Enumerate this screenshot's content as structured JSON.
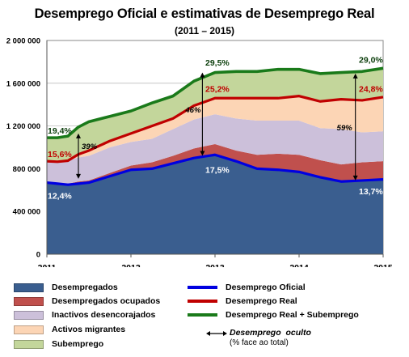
{
  "title": "Desemprego Oficial e estimativas de Desemprego Real",
  "subtitle": "(2011 – 2015)",
  "colors": {
    "desempregados": "#3a5e8f",
    "ocupados": "#c0504d",
    "inactivos": "#ccc0da",
    "migrantes": "#fcd5b5",
    "subemprego": "#c3d69b",
    "oficial_line": "#0000e0",
    "real_line": "#c00000",
    "total_line": "#1a7a1a"
  },
  "chart_data": {
    "type": "area",
    "x": [
      2011.0,
      2011.125,
      2011.25,
      2011.375,
      2011.5,
      2011.75,
      2012.0,
      2012.25,
      2012.5,
      2012.75,
      2013.0,
      2013.25,
      2013.5,
      2013.75,
      2014.0,
      2014.25,
      2014.5,
      2014.75,
      2015.0
    ],
    "xticks": [
      "2011",
      "2012",
      "2013",
      "2014",
      "2015"
    ],
    "ylim": [
      0,
      2000000
    ],
    "yticks": [
      "0",
      "400 000",
      "800 000",
      "1 200 000",
      "1 600 000",
      "2 000 000"
    ],
    "series": [
      {
        "name": "Desempregados",
        "values": [
          670000,
          660000,
          650000,
          660000,
          670000,
          730000,
          790000,
          800000,
          850000,
          900000,
          930000,
          870000,
          800000,
          790000,
          770000,
          720000,
          680000,
          690000,
          700000
        ]
      },
      {
        "name": "Desempregados ocupados",
        "values": [
          0,
          0,
          10000,
          20000,
          20000,
          30000,
          40000,
          60000,
          70000,
          90000,
          100000,
          100000,
          130000,
          150000,
          160000,
          160000,
          160000,
          170000,
          170000
        ]
      },
      {
        "name": "Inactivos desencorajados",
        "values": [
          200000,
          205000,
          215000,
          225000,
          230000,
          240000,
          220000,
          220000,
          250000,
          270000,
          280000,
          300000,
          320000,
          310000,
          320000,
          300000,
          330000,
          280000,
          280000
        ]
      },
      {
        "name": "Activos migrantes",
        "values": [
          0,
          0,
          0,
          30000,
          50000,
          60000,
          80000,
          120000,
          100000,
          130000,
          150000,
          190000,
          210000,
          210000,
          230000,
          250000,
          280000,
          300000,
          320000
        ]
      },
      {
        "name": "Subemprego",
        "values": [
          220000,
          225000,
          230000,
          255000,
          270000,
          230000,
          210000,
          215000,
          210000,
          230000,
          240000,
          250000,
          250000,
          270000,
          250000,
          260000,
          250000,
          270000,
          270000
        ]
      }
    ],
    "lines": [
      {
        "name": "Desemprego Oficial",
        "values": [
          670000,
          660000,
          650000,
          660000,
          670000,
          730000,
          790000,
          800000,
          850000,
          900000,
          930000,
          870000,
          800000,
          790000,
          770000,
          720000,
          680000,
          690000,
          700000
        ]
      },
      {
        "name": "Desemprego Real",
        "values": [
          870000,
          865000,
          875000,
          935000,
          970000,
          1060000,
          1130000,
          1200000,
          1270000,
          1390000,
          1460000,
          1460000,
          1460000,
          1460000,
          1480000,
          1430000,
          1450000,
          1440000,
          1470000
        ]
      },
      {
        "name": "Desemprego Real + Subemprego",
        "values": [
          1090000,
          1090000,
          1105000,
          1190000,
          1240000,
          1290000,
          1340000,
          1415000,
          1480000,
          1620000,
          1700000,
          1710000,
          1710000,
          1730000,
          1730000,
          1690000,
          1700000,
          1710000,
          1740000
        ]
      }
    ],
    "annotations": {
      "start": {
        "oficial": "12,4%",
        "real": "15,6%",
        "total": "19,4%",
        "oculto": "39%"
      },
      "mid": {
        "oficial": "17,5%",
        "real": "25,2%",
        "total": "29,5%",
        "oculto": "46%"
      },
      "end": {
        "oficial": "13,7%",
        "real": "24,8%",
        "total": "29,0%",
        "oculto": "59%"
      }
    }
  },
  "legend": {
    "areas": [
      "Desempregados",
      "Desempregados ocupados",
      "Inactivos desencorajados",
      "Activos migrantes",
      "Subemprego"
    ],
    "lines": [
      "Desemprego Oficial",
      "Desemprego Real",
      "Desemprego Real + Subemprego"
    ],
    "oculto_title": "Desemprego  oculto",
    "oculto_sub": "(% face ao total)"
  }
}
